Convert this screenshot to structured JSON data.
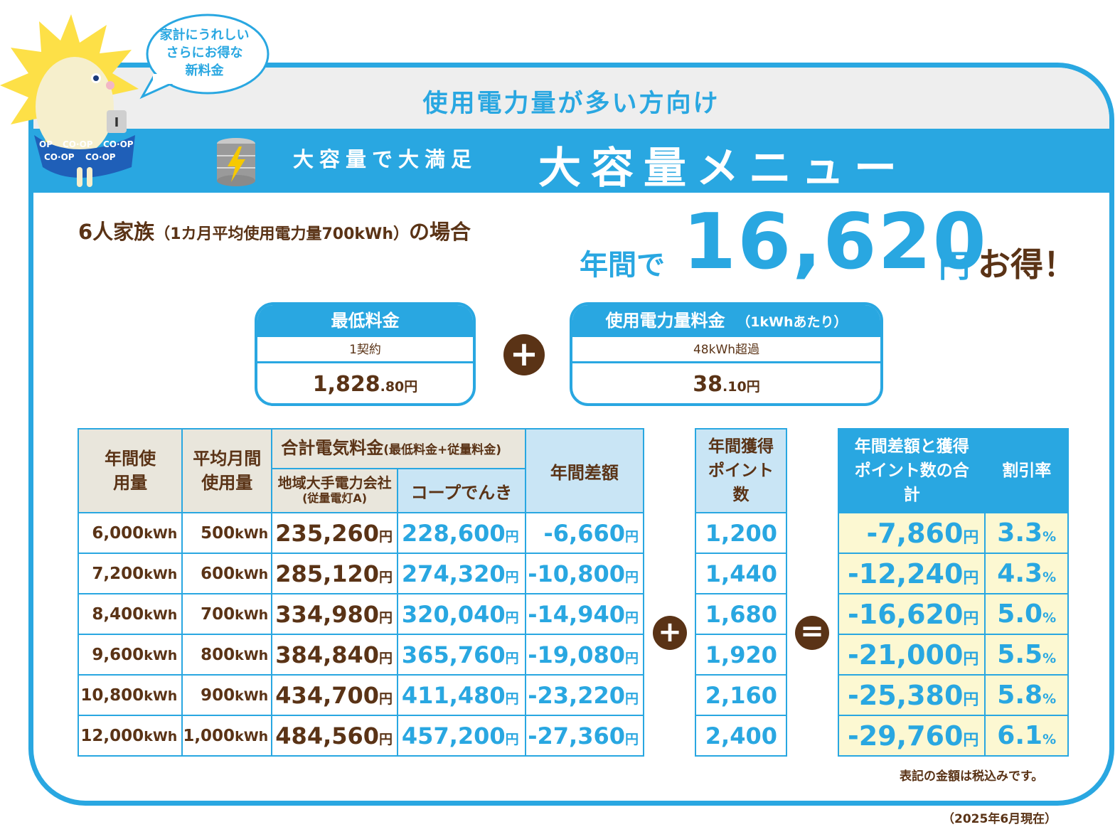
{
  "bubble": {
    "lines": [
      "家計にうれしい",
      "さらにお得な",
      "新料金"
    ]
  },
  "mascot": {
    "pattern_text": [
      "CO·OP",
      "CO·OP",
      "CO·OP",
      "CO·OP",
      "CO·OP",
      "CO·OP"
    ],
    "badge": "I"
  },
  "header": {
    "subtitle": "使用電力量が多い方向け",
    "tagline": "大容量で大満足",
    "title": "大容量メニュー"
  },
  "case": {
    "main": "6人家族",
    "detail": "（1カ月平均使用電力量700kWh）",
    "suffix": "の場合"
  },
  "savings": {
    "prefix": "年間で",
    "amount": "16,620",
    "yen": "円",
    "suffix": "お得！"
  },
  "base_fee": {
    "label": "最低料金",
    "condition": "1契約",
    "price_main": "1,828",
    "price_decimal": ".80円"
  },
  "usage_fee": {
    "label": "使用電力量料金",
    "label_note": "（1kWhあたり）",
    "condition": "48kWh超過",
    "price_main": "38",
    "price_decimal": ".10円"
  },
  "ops": {
    "plus": "+",
    "equals": "="
  },
  "table": {
    "headers": {
      "annual_usage": "年間使用量",
      "monthly_avg": "平均月間使用量",
      "total_fee": "合計電気料金",
      "total_fee_note": "(最低料金+従量料金)",
      "regional": "地域大手電力会社",
      "regional_note": "(従量電灯A)",
      "coop": "コープでんき",
      "annual_diff": "年間差額"
    },
    "rows": [
      {
        "annual": "6,000",
        "monthly": "500",
        "regional": "235,260",
        "coop": "228,600",
        "diff": "-6,660"
      },
      {
        "annual": "7,200",
        "monthly": "600",
        "regional": "285,120",
        "coop": "274,320",
        "diff": "-10,800"
      },
      {
        "annual": "8,400",
        "monthly": "700",
        "regional": "334,980",
        "coop": "320,040",
        "diff": "-14,940"
      },
      {
        "annual": "9,600",
        "monthly": "800",
        "regional": "384,840",
        "coop": "365,760",
        "diff": "-19,080"
      },
      {
        "annual": "10,800",
        "monthly": "900",
        "regional": "434,700",
        "coop": "411,480",
        "diff": "-23,220"
      },
      {
        "annual": "12,000",
        "monthly": "1,000",
        "regional": "484,560",
        "coop": "457,200",
        "diff": "-27,360"
      }
    ],
    "kwh": "kWh",
    "yen": "円"
  },
  "points": {
    "header": "年間獲得ポイント数",
    "values": [
      "1,200",
      "1,440",
      "1,680",
      "1,920",
      "2,160",
      "2,400"
    ]
  },
  "result": {
    "header_total": "年間差額と獲得ポイント数の合計",
    "header_rate": "割引率",
    "totals": [
      "-7,860",
      "-12,240",
      "-16,620",
      "-21,000",
      "-25,380",
      "-29,760"
    ],
    "rates": [
      "3.3",
      "4.3",
      "5.0",
      "5.5",
      "5.8",
      "6.1"
    ],
    "pct": "%"
  },
  "footnote": "表記の金額は税込みです。",
  "as_of": "（2025年6月現在）",
  "colors": {
    "blue": "#29a7e1",
    "brown": "#5a3316",
    "light_blue": "#c9e5f5",
    "gray": "#e9e6dc",
    "yellow": "#fcf8d2"
  }
}
